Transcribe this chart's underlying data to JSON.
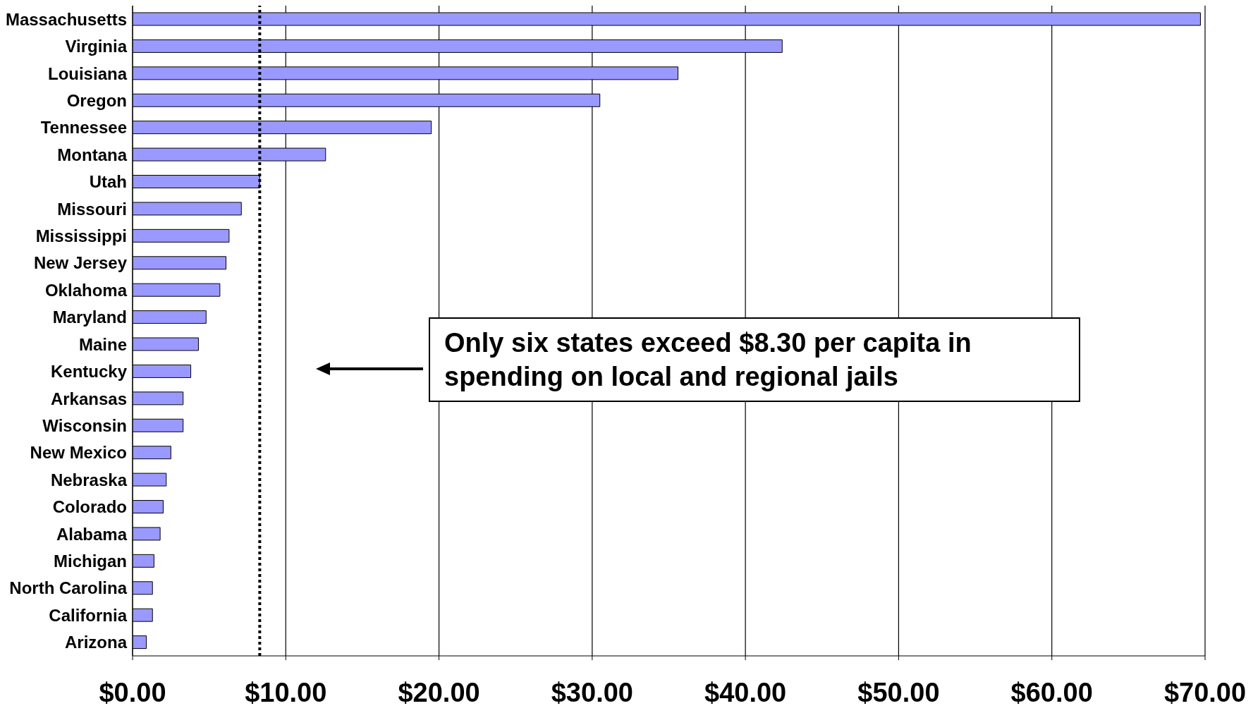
{
  "chart_data": {
    "type": "bar",
    "orientation": "horizontal",
    "categories": [
      "Massachusetts",
      "Virginia",
      "Louisiana",
      "Oregon",
      "Tennessee",
      "Montana",
      "Utah",
      "Missouri",
      "Mississippi",
      "New Jersey",
      "Oklahoma",
      "Maryland",
      "Maine",
      "Kentucky",
      "Arkansas",
      "Wisconsin",
      "New Mexico",
      "Nebraska",
      "Colorado",
      "Alabama",
      "Michigan",
      "North Carolina",
      "California",
      "Arizona"
    ],
    "values": [
      69.7,
      42.4,
      35.6,
      30.5,
      19.5,
      12.6,
      8.3,
      7.1,
      6.3,
      6.1,
      5.7,
      4.8,
      4.3,
      3.8,
      3.3,
      3.3,
      2.5,
      2.2,
      2.0,
      1.8,
      1.4,
      1.3,
      1.3,
      0.9
    ],
    "color": "#9999ff",
    "xlim": [
      0,
      70
    ],
    "xticks": [
      {
        "value": 0,
        "label": "$0.00"
      },
      {
        "value": 10,
        "label": "$10.00"
      },
      {
        "value": 20,
        "label": "$20.00"
      },
      {
        "value": 30,
        "label": "$30.00"
      },
      {
        "value": 40,
        "label": "$40.00"
      },
      {
        "value": 50,
        "label": "$50.00"
      },
      {
        "value": 60,
        "label": "$60.00"
      },
      {
        "value": 70,
        "label": "$70.00"
      }
    ],
    "grid": "x",
    "ref_lines": [
      {
        "axis": "x",
        "value": 8.3,
        "line_style": "dotted",
        "color": "#000000"
      }
    ],
    "annotations": [
      "Only six states exceed $8.30 per capita in spending on local and regional jails"
    ]
  }
}
